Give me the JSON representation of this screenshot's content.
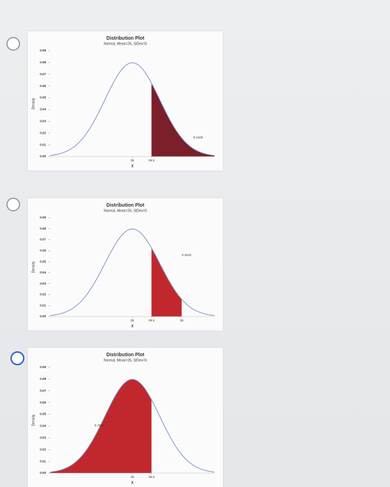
{
  "chart_data": [
    {
      "type": "normal",
      "title": "Distribution Plot",
      "subtitle": "Normal, Mean=26, StDev=5",
      "mean": 26,
      "stdev": 5,
      "color": "#7b1f2a",
      "line_color": "#7f93c4",
      "x_label": "X",
      "y_label": "Density",
      "xlim": [
        11,
        41
      ],
      "xticks": [
        26,
        29.5
      ],
      "ylim": [
        0,
        0.09
      ],
      "yticks": [
        {
          "value": 0,
          "label": "0.00"
        },
        0.01,
        0.02,
        0.03,
        0.04,
        0.05,
        0.06,
        0.07,
        0.08,
        0.09
      ],
      "shade": {
        "from": 29.5,
        "to": null,
        "value": 0.242,
        "value_label": "0.2420"
      }
    },
    {
      "type": "normal",
      "title": "Distribution Plot",
      "subtitle": "Normal, Mean=26, StDev=5",
      "mean": 26,
      "stdev": 5,
      "color": "#c0282d",
      "line_color": "#7f93c4",
      "x_label": "X",
      "y_label": "Density",
      "xlim": [
        11,
        41
      ],
      "xticks": [
        26,
        29.5,
        35
      ],
      "ylim": [
        0,
        0.09
      ],
      "yticks": [
        {
          "value": 0,
          "label": "0.00"
        },
        0.01,
        0.02,
        0.03,
        0.04,
        0.05,
        0.06,
        0.07,
        0.08,
        0.09
      ],
      "shade": {
        "from": 29.5,
        "to": 35,
        "value": 0.1612,
        "value_label": "0.1612"
      }
    },
    {
      "type": "normal",
      "title": "Distribution Plot",
      "subtitle": "Normal, Mean=26, StDev=5",
      "mean": 26,
      "stdev": 5,
      "color": "#c0282d",
      "line_color": "#7f93c4",
      "x_label": "X",
      "y_label": "Density",
      "xlim": [
        11,
        41
      ],
      "xticks": [
        26,
        29.5
      ],
      "ylim": [
        0,
        0.09
      ],
      "yticks": [
        {
          "value": 0,
          "label": "0.00"
        },
        0.01,
        0.02,
        0.03,
        0.04,
        0.05,
        0.06,
        0.07,
        0.08,
        0.09
      ],
      "shade": {
        "from": null,
        "to": 29.5,
        "value": 0.758,
        "value_label": "0.7580"
      }
    }
  ]
}
